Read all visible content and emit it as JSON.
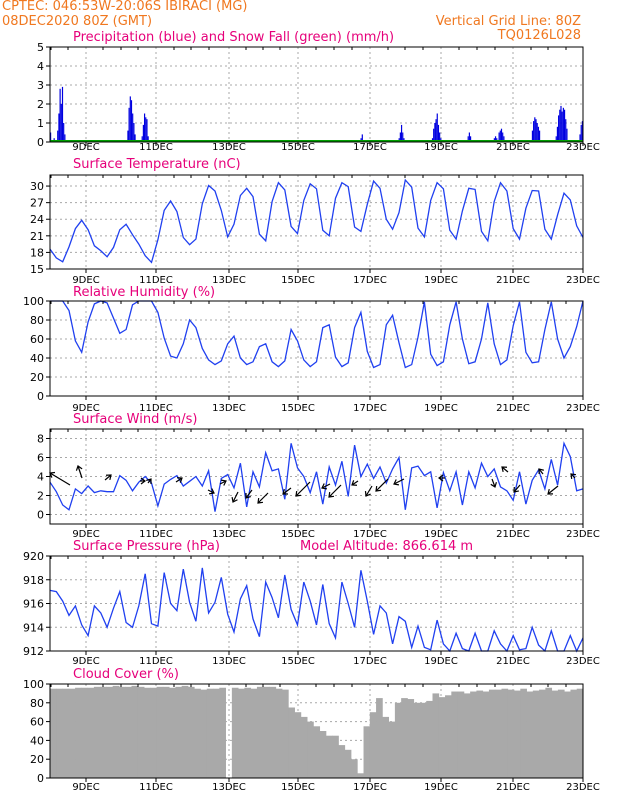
{
  "header": {
    "line1": "CPTEC:   046:53W-20:06S   IBIRACI (MG)",
    "line2": "08DEC2020 80Z (GMT)",
    "right1": "Vertical Grid Line: 80Z",
    "right2": "TQ0126L028"
  },
  "days": [
    "9DEC",
    "11DEC",
    "13DEC",
    "15DEC",
    "17DEC",
    "19DEC",
    "21DEC",
    "23DEC"
  ],
  "chart_data": [
    {
      "type": "bar",
      "title": "Precipitation (blue) and Snow Fall (green) (mm/h)",
      "ylim": [
        0,
        5
      ],
      "yticks": [
        "0",
        "1",
        "2",
        "3",
        "4",
        "5"
      ],
      "series": [
        {
          "name": "Precipitation",
          "color": "#0000e0",
          "values": [
            0.5,
            0,
            0,
            0.2,
            0,
            0,
            0.6,
            1.5,
            2.8,
            2.0,
            2.9,
            1.0,
            0.4,
            0,
            0,
            0,
            0,
            0,
            0,
            0,
            0,
            0,
            0,
            0,
            0,
            0,
            0,
            0,
            0,
            0,
            0,
            0,
            0,
            0,
            0,
            0,
            0,
            0,
            0,
            0,
            0,
            0,
            0,
            0,
            0,
            0,
            0,
            0,
            0,
            0,
            0,
            0,
            0,
            0,
            0,
            0,
            0,
            0,
            0,
            0,
            0,
            0,
            0,
            0,
            0,
            0.6,
            1.8,
            2.4,
            2.2,
            1.5,
            1.0,
            0.4,
            0,
            0,
            0,
            0,
            0,
            0.3,
            0.9,
            1.5,
            1.3,
            1.2,
            0.3,
            0,
            0,
            0,
            0,
            0,
            0,
            0,
            0,
            0,
            0,
            0,
            0,
            0,
            0,
            0,
            0,
            0,
            0,
            0,
            0,
            0,
            0,
            0,
            0,
            0,
            0,
            0,
            0,
            0,
            0,
            0,
            0,
            0,
            0,
            0,
            0,
            0,
            0,
            0,
            0,
            0,
            0,
            0,
            0,
            0,
            0,
            0,
            0,
            0,
            0,
            0,
            0,
            0,
            0,
            0,
            0.1,
            0,
            0,
            0,
            0,
            0,
            0,
            0,
            0,
            0,
            0,
            0,
            0,
            0,
            0,
            0,
            0,
            0,
            0,
            0,
            0,
            0,
            0,
            0,
            0,
            0,
            0,
            0,
            0,
            0,
            0,
            0,
            0,
            0,
            0,
            0,
            0,
            0,
            0,
            0,
            0,
            0,
            0,
            0,
            0,
            0,
            0,
            0,
            0,
            0,
            0,
            0,
            0,
            0,
            0,
            0,
            0,
            0,
            0,
            0,
            0,
            0,
            0,
            0,
            0,
            0,
            0,
            0,
            0,
            0,
            0,
            0,
            0,
            0,
            0,
            0,
            0,
            0,
            0,
            0,
            0,
            0,
            0,
            0,
            0,
            0,
            0,
            0,
            0,
            0,
            0,
            0,
            0,
            0,
            0,
            0,
            0,
            0,
            0,
            0,
            0,
            0,
            0,
            0,
            0,
            0,
            0,
            0,
            0,
            0,
            0.1,
            0,
            0,
            0,
            0,
            0,
            0,
            0,
            0,
            0,
            0,
            0,
            0,
            0.2,
            0.4,
            0,
            0,
            0,
            0,
            0,
            0,
            0,
            0,
            0,
            0,
            0,
            0,
            0,
            0,
            0,
            0,
            0,
            0,
            0,
            0,
            0,
            0,
            0,
            0,
            0,
            0,
            0,
            0,
            0,
            0,
            0.2,
            0.5,
            0.9,
            0.5,
            0.2,
            0,
            0,
            0,
            0,
            0,
            0,
            0,
            0,
            0,
            0,
            0,
            0,
            0,
            0,
            0,
            0,
            0,
            0,
            0,
            0,
            0,
            0,
            0,
            0.2,
            0.7,
            1.0,
            1.2,
            1.5,
            0.9,
            0.5,
            0.2,
            0,
            0,
            0,
            0,
            0,
            0,
            0,
            0,
            0,
            0,
            0,
            0,
            0,
            0,
            0,
            0,
            0,
            0,
            0,
            0,
            0,
            0,
            0.3,
            0.5,
            0.3,
            0,
            0,
            0,
            0,
            0,
            0,
            0,
            0,
            0,
            0,
            0,
            0,
            0,
            0,
            0,
            0,
            0,
            0,
            0,
            0.2,
            0.3,
            0.2,
            0.1,
            0.5,
            0.6,
            0.7,
            0.5,
            0.3,
            0,
            0,
            0,
            0,
            0,
            0,
            0,
            0,
            0,
            0,
            0,
            0,
            0,
            0,
            0,
            0,
            0,
            0,
            0,
            0,
            0,
            0,
            0.1,
            0.6,
            1.1,
            1.3,
            1.2,
            1.0,
            0.8,
            0.6,
            0,
            0,
            0,
            0,
            0,
            0,
            0,
            0,
            0,
            0,
            0,
            0,
            0,
            0.3,
            0.8,
            1.4,
            1.7,
            1.9,
            1.6,
            1.8,
            1.7,
            1.2,
            0.7,
            0,
            0,
            0,
            0,
            0,
            0,
            0,
            0,
            0,
            0,
            0.4,
            0.9,
            1.1
          ]
        },
        {
          "name": "Snow Fall",
          "color": "#00a000",
          "values": []
        }
      ]
    },
    {
      "type": "line",
      "title": "Surface Temperature (nC)",
      "ylim": [
        15,
        32
      ],
      "yticks": [
        "15",
        "18",
        "21",
        "24",
        "27",
        "30"
      ],
      "series": [
        {
          "name": "Surface Temperature",
          "color": "#2040f0",
          "values": [
            18.6,
            17.0,
            16.3,
            19.0,
            22.3,
            23.8,
            22.1,
            19.2,
            18.3,
            17.2,
            18.9,
            22.1,
            23.1,
            21.2,
            19.5,
            17.4,
            16.2,
            20.3,
            25.6,
            27.3,
            25.4,
            20.7,
            19.4,
            20.4,
            26.8,
            30.1,
            29.1,
            25.6,
            20.8,
            23.1,
            28.3,
            29.6,
            28.1,
            21.3,
            20.1,
            27.2,
            30.6,
            29.3,
            22.7,
            21.4,
            27.4,
            30.4,
            29.5,
            22.0,
            21.0,
            27.8,
            30.6,
            29.9,
            22.6,
            21.8,
            26.7,
            30.9,
            29.6,
            24.0,
            22.2,
            25.2,
            31.1,
            29.8,
            22.4,
            20.8,
            27.4,
            30.6,
            29.5,
            22.0,
            20.4,
            25.5,
            29.6,
            29.4,
            21.8,
            20.1,
            27.2,
            30.6,
            29.1,
            22.3,
            20.4,
            26.0,
            29.2,
            29.1,
            22.2,
            20.4,
            24.8,
            28.7,
            27.5,
            22.8,
            20.7
          ]
        }
      ]
    },
    {
      "type": "line",
      "title": "Relative Humidity (%)",
      "ylim": [
        0,
        100
      ],
      "yticks": [
        "0",
        "20",
        "40",
        "60",
        "80",
        "100"
      ],
      "series": [
        {
          "name": "Relative Humidity",
          "color": "#2040f0",
          "values": [
            100,
            100,
            100,
            90,
            58,
            46,
            78,
            97,
            100,
            98,
            82,
            66,
            70,
            96,
            100,
            100,
            100,
            88,
            61,
            42,
            40,
            55,
            80,
            72,
            50,
            38,
            33,
            37,
            55,
            63,
            40,
            33,
            36,
            52,
            55,
            36,
            31,
            37,
            70,
            58,
            38,
            31,
            36,
            72,
            75,
            41,
            31,
            35,
            72,
            88,
            47,
            30,
            33,
            75,
            85,
            56,
            30,
            33,
            62,
            99,
            44,
            32,
            36,
            75,
            99,
            60,
            34,
            36,
            60,
            98,
            55,
            33,
            38,
            74,
            99,
            46,
            35,
            36,
            70,
            99,
            60,
            40,
            52,
            73,
            100
          ]
        }
      ]
    },
    {
      "type": "line",
      "title": "Surface Wind (m/s)",
      "ylim": [
        -1,
        9
      ],
      "yticks": [
        "0",
        "2",
        "4",
        "6",
        "8"
      ],
      "series": [
        {
          "name": "Surface Wind",
          "color": "#2040f0",
          "values": [
            3.4,
            2.4,
            1.0,
            0.5,
            2.7,
            2.2,
            3.0,
            2.3,
            2.5,
            2.4,
            2.4,
            4.1,
            3.6,
            2.5,
            3.4,
            4.0,
            3.3,
            0.9,
            3.2,
            3.7,
            4.1,
            3.0,
            3.5,
            4.0,
            3.0,
            4.6,
            0.3,
            3.8,
            4.2,
            2.8,
            5.4,
            0.8,
            4.5,
            2.9,
            6.5,
            4.6,
            4.8,
            1.6,
            7.5,
            4.9,
            4.0,
            2.3,
            4.5,
            1.1,
            5.0,
            3.1,
            5.6,
            1.9,
            7.3,
            4.0,
            5.3,
            3.8,
            5.0,
            3.3,
            4.8,
            6.0,
            0.5,
            4.9,
            5.1,
            4.1,
            4.5,
            0.7,
            4.4,
            2.5,
            4.5,
            1.0,
            4.5,
            2.8,
            5.4,
            4.0,
            4.8,
            2.9,
            2.5,
            1.5,
            4.5,
            1.1,
            3.6,
            4.7,
            2.7,
            5.8,
            3.1,
            7.5,
            6.1,
            2.5,
            2.7
          ]
        }
      ]
    },
    {
      "type": "line",
      "title": "Surface Pressure (hPa)",
      "subtitle": "Model Altitude: 866.614 m",
      "ylim": [
        912,
        920
      ],
      "yticks": [
        "912",
        "914",
        "916",
        "918",
        "920"
      ],
      "series": [
        {
          "name": "Surface Pressure",
          "color": "#2040f0",
          "values": [
            917.1,
            917.0,
            916.2,
            915.0,
            915.8,
            914.2,
            913.3,
            915.8,
            915.2,
            914.0,
            915.6,
            917.0,
            914.4,
            914.0,
            915.8,
            918.5,
            914.3,
            914.1,
            918.6,
            916.0,
            915.4,
            918.9,
            916.1,
            914.5,
            919.0,
            915.2,
            916.1,
            918.2,
            915.1,
            913.6,
            916.4,
            917.5,
            914.7,
            913.2,
            917.8,
            916.5,
            914.8,
            918.4,
            915.5,
            914.2,
            917.8,
            916.2,
            914.2,
            917.6,
            914.3,
            913.1,
            917.8,
            916.0,
            914.0,
            918.8,
            916.2,
            913.4,
            915.8,
            915.2,
            912.6,
            914.9,
            914.5,
            912.3,
            914.1,
            912.3,
            912.1,
            914.6,
            912.6,
            911.8,
            913.5,
            912.2,
            911.9,
            913.5,
            911.9,
            912.0,
            913.7,
            912.6,
            911.9,
            913.3,
            912.1,
            912.2,
            914.0,
            912.5,
            911.8,
            913.7,
            911.7,
            911.8,
            913.3,
            911.9,
            913.1
          ]
        }
      ]
    },
    {
      "type": "area",
      "title": "Cloud Cover (%)",
      "ylim": [
        0,
        100
      ],
      "yticks": [
        "0",
        "20",
        "40",
        "60",
        "80",
        "100"
      ],
      "series": [
        {
          "name": "Cloud Cover",
          "color": "#a9a9a9",
          "values": [
            95,
            95,
            95,
            95,
            96,
            96,
            96,
            97,
            97,
            97,
            98,
            97,
            97,
            98,
            97,
            96,
            96,
            97,
            97,
            96,
            97,
            98,
            97,
            95,
            94,
            95,
            95,
            96,
            0,
            96,
            95,
            96,
            95,
            97,
            97,
            97,
            95,
            94,
            75,
            70,
            65,
            60,
            55,
            50,
            45,
            45,
            35,
            30,
            20,
            5,
            55,
            70,
            85,
            65,
            60,
            80,
            85,
            84,
            80,
            80,
            82,
            90,
            86,
            88,
            92,
            92,
            90,
            92,
            93,
            92,
            94,
            94,
            95,
            94,
            93,
            95,
            92,
            93,
            94,
            96,
            93,
            94,
            92,
            94,
            95
          ]
        }
      ]
    }
  ]
}
